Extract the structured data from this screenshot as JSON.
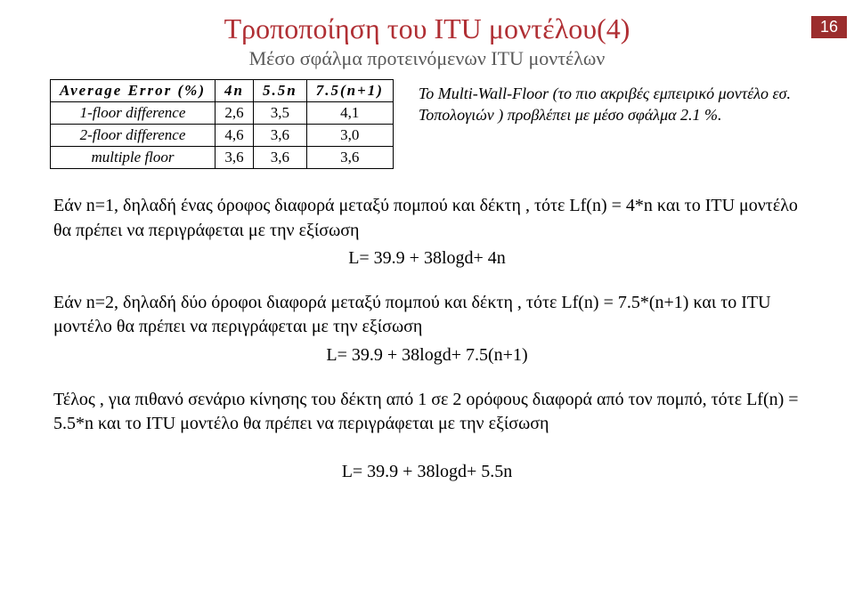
{
  "slide_number": "16",
  "title": "Τροποποίηση του ITU μοντέλου(4)",
  "subtitle": "Μέσο σφάλμα προτεινόμενων ITU μοντέλων",
  "table": {
    "head_label": "Average Error (%)",
    "cols": [
      "4n",
      "5.5n",
      "7.5(n+1)"
    ],
    "rows": [
      {
        "label": "1-floor difference",
        "cells": [
          "2,6",
          "3,5",
          "4,1"
        ]
      },
      {
        "label": "2-floor difference",
        "cells": [
          "4,6",
          "3,6",
          "3,0"
        ]
      },
      {
        "label": "multiple floor",
        "cells": [
          "3,6",
          "3,6",
          "3,6"
        ]
      }
    ]
  },
  "note": "Το Multi-Wall-Floor (το πιο ακριβές εμπειρικό μοντέλο εσ. Τοπολογιών ) προβλέπει με μέσο σφάλμα  2.1 %.",
  "p1": {
    "text": "Εάν  n=1, δηλαδή ένας όροφος διαφορά μεταξύ πομπού και δέκτη , τότε  Lf(n) = 4*n και το ITU μοντέλο θα πρέπει να περιγράφεται με την εξίσωση",
    "eq": "L= 39.9 + 38logd+ 4n"
  },
  "p2": {
    "text": "Εάν n=2, δηλαδή δύο όροφοι διαφορά μεταξύ πομπού και δέκτη , τότε Lf(n) = 7.5*(n+1) και το ITU μοντέλο θα πρέπει να περιγράφεται με την εξίσωση",
    "eq": "L= 39.9 + 38logd+ 7.5(n+1)"
  },
  "p3": {
    "text": "Τέλος , για πιθανό σενάριο κίνησης του δέκτη από 1 σε 2 ορόφους διαφορά από τον πομπό, τότε  Lf(n) = 5.5*n και το ITU μοντέλο θα πρέπει να περιγράφεται με την εξίσωση"
  },
  "eq_final": "L= 39.9 + 38logd+ 5.5n"
}
